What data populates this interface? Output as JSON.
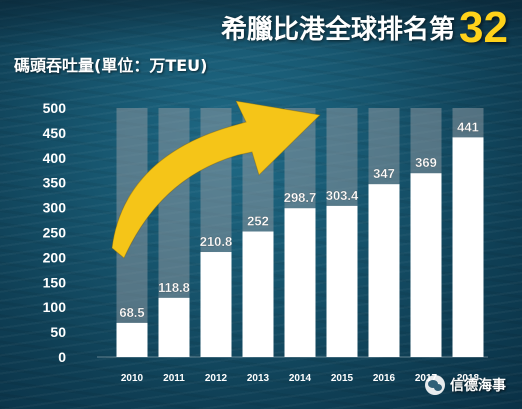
{
  "headline": {
    "text": "希臘比港全球排名第",
    "rank": "32"
  },
  "unit_label": "碼頭吞吐量(單位：万TEU)",
  "watermark": {
    "icon": "wechat-icon",
    "text": "信德海事"
  },
  "colors": {
    "bar": "#ffffff",
    "background_bar": "#8a97a0",
    "arrow": "#f5c518",
    "rank": "#ffd21a"
  },
  "chart_data": {
    "type": "bar",
    "categories": [
      "2010",
      "2011",
      "2012",
      "2013",
      "2014",
      "2015",
      "2016",
      "2017",
      "2018"
    ],
    "values": [
      68.5,
      118.8,
      210.8,
      252,
      298.7,
      303.4,
      347,
      369,
      441
    ],
    "value_labels": [
      "68.5",
      "118.8",
      "210.8",
      "252",
      "298.7",
      "303.4",
      "347",
      "369",
      "441"
    ],
    "ylim": [
      0,
      500
    ],
    "yticks": [
      "0",
      "50",
      "100",
      "150",
      "200",
      "250",
      "300",
      "350",
      "400",
      "450",
      "500"
    ],
    "title": "",
    "xlabel": "",
    "ylabel": "碼頭吞吐量(單位：万TEU)",
    "grid": false,
    "annotation": "upward trend arrow"
  }
}
